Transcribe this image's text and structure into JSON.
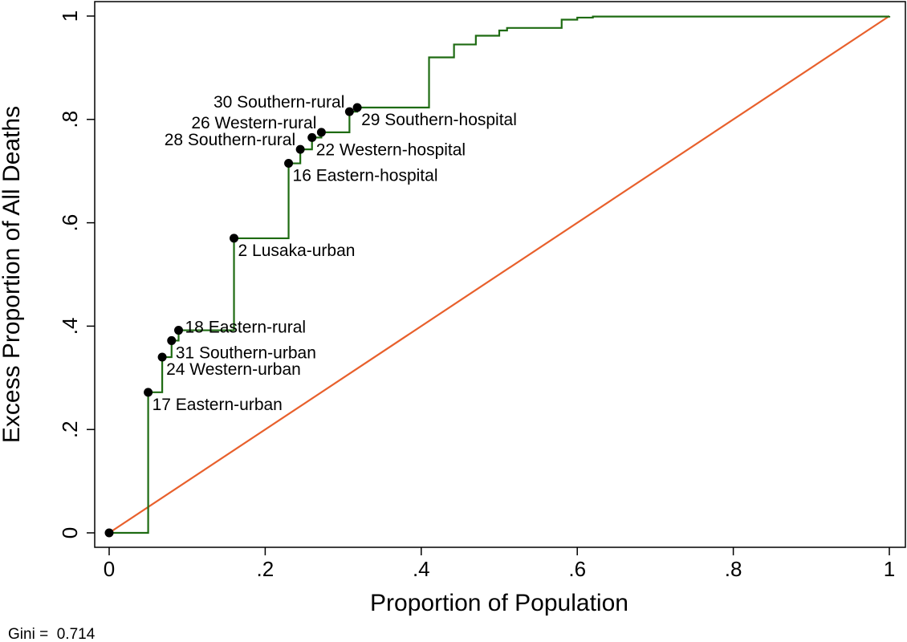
{
  "chart_data": {
    "type": "line",
    "title": "",
    "xlabel": "Proportion of Population",
    "ylabel": "Excess Proportion of All Deaths",
    "xlim": [
      0,
      1
    ],
    "ylim": [
      0,
      1
    ],
    "x_ticks": [
      0,
      0.2,
      0.4,
      0.6,
      0.8,
      1
    ],
    "x_tick_labels": [
      "0",
      ".2",
      ".4",
      ".6",
      ".8",
      "1"
    ],
    "y_ticks": [
      0,
      0.2,
      0.4,
      0.6,
      0.8,
      1
    ],
    "y_tick_labels": [
      "0",
      ".2",
      ".4",
      ".6",
      ".8",
      "1"
    ],
    "grid": false,
    "legend": "none",
    "colors": {
      "lorenz": "#1e6b12",
      "equality": "#e8602c",
      "points": "#000000"
    },
    "series": [
      {
        "role": "lorenz-curve-step",
        "x": [
          0,
          0.05,
          0.068,
          0.08,
          0.089,
          0.16,
          0.23,
          0.245,
          0.26,
          0.272,
          0.308,
          0.318,
          0.41,
          0.442,
          0.47,
          0.5,
          0.51,
          0.58,
          0.6,
          0.62,
          1
        ],
        "y": [
          0,
          0.272,
          0.34,
          0.372,
          0.392,
          0.57,
          0.715,
          0.742,
          0.765,
          0.775,
          0.815,
          0.823,
          0.92,
          0.945,
          0.962,
          0.972,
          0.977,
          0.993,
          0.997,
          0.999,
          1
        ]
      },
      {
        "role": "equality-line",
        "x": [
          0,
          1
        ],
        "y": [
          0,
          1
        ]
      }
    ],
    "labeled_points": [
      {
        "x": 0,
        "y": 0,
        "label": "",
        "anchor": "none"
      },
      {
        "x": 0.05,
        "y": 0.272,
        "label": "17 Eastern-urban",
        "anchor": "below-right"
      },
      {
        "x": 0.068,
        "y": 0.34,
        "label": "24 Western-urban",
        "anchor": "below-right"
      },
      {
        "x": 0.08,
        "y": 0.372,
        "label": "31 Southern-urban",
        "anchor": "below-right"
      },
      {
        "x": 0.089,
        "y": 0.392,
        "label": "18 Eastern-rural",
        "anchor": "right"
      },
      {
        "x": 0.16,
        "y": 0.57,
        "label": "2 Lusaka-urban",
        "anchor": "below-right"
      },
      {
        "x": 0.23,
        "y": 0.715,
        "label": "16 Eastern-hospital",
        "anchor": "below-right"
      },
      {
        "x": 0.245,
        "y": 0.742,
        "label": "28 Southern-rural",
        "anchor": "left"
      },
      {
        "x": 0.26,
        "y": 0.765,
        "label": "22 Western-hospital",
        "anchor": "below-right"
      },
      {
        "x": 0.272,
        "y": 0.775,
        "label": "26 Western-rural",
        "anchor": "left"
      },
      {
        "x": 0.308,
        "y": 0.815,
        "label": "30 Southern-rural",
        "anchor": "left"
      },
      {
        "x": 0.318,
        "y": 0.823,
        "label": "29 Southern-hospital",
        "anchor": "below-right"
      }
    ],
    "annotations": [
      {
        "text": "Gini =  0.714"
      }
    ]
  }
}
